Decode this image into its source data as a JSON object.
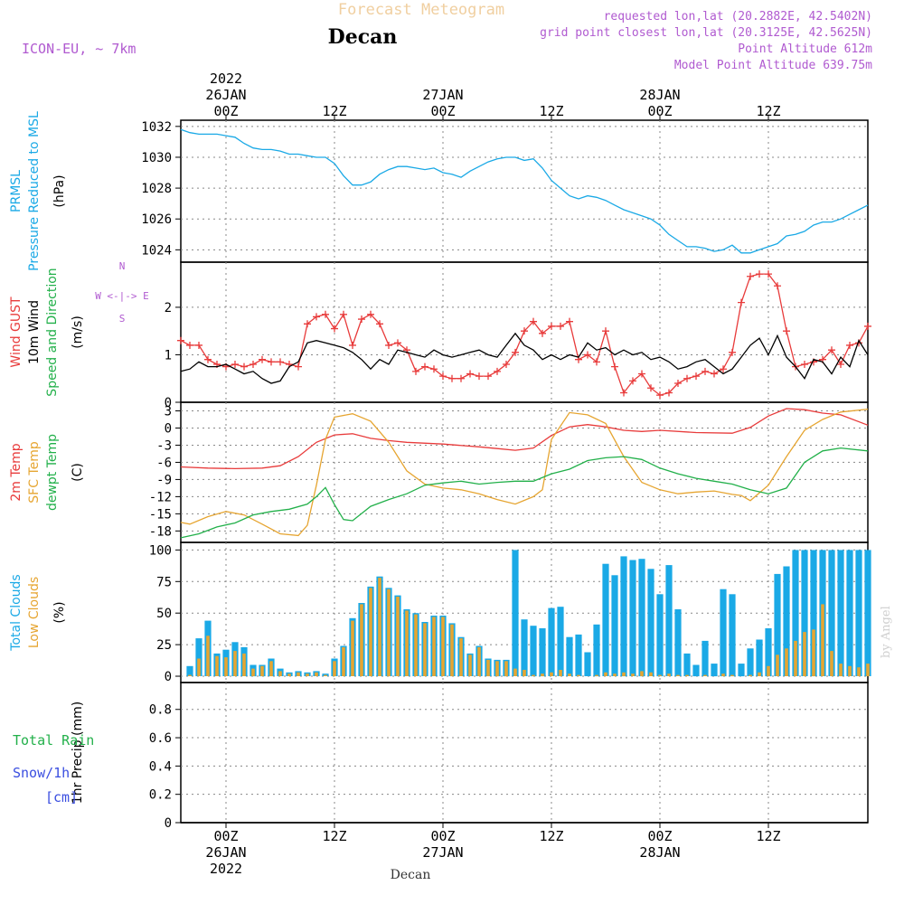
{
  "header": {
    "title": "Forecast Meteogram",
    "location": "Decan",
    "model": "ICON-EU, ~ 7km",
    "requested": "requested lon,lat (20.2882E, 42.5402N)",
    "gridpoint": "grid point closest lon,lat (20.3125E, 42.5625N)",
    "point_alt": "Point Altitude 612m",
    "model_alt": "Model Point Altitude 639.75m",
    "watermark": "by Angel",
    "footer_location": "Decan"
  },
  "time_axis": {
    "year": "2022",
    "ticks": [
      {
        "h": 0,
        "label": "00Z",
        "date": "26JAN",
        "year": "2022"
      },
      {
        "h": 12,
        "label": "12Z"
      },
      {
        "h": 24,
        "label": "00Z",
        "date": "27JAN"
      },
      {
        "h": 36,
        "label": "12Z"
      },
      {
        "h": 48,
        "label": "00Z",
        "date": "28JAN"
      },
      {
        "h": 60,
        "label": "12Z"
      }
    ],
    "range_hours": [
      -5,
      71
    ]
  },
  "chart_data": [
    {
      "type": "line",
      "panel": "pressure",
      "ylabel_lines": [
        {
          "text": "PRMSL",
          "color": "#1aa9e6"
        },
        {
          "text": "Pressure Reduced to MSL",
          "color": "#1aa9e6"
        }
      ],
      "unit": "(hPa)",
      "ylim": [
        1023.2,
        1032.4
      ],
      "yticks": [
        1024,
        1026,
        1028,
        1030,
        1032
      ],
      "grid": true,
      "series": [
        {
          "color": "#1aa9e6",
          "x": [
            -5,
            -4,
            -3,
            -2,
            -1,
            0,
            1,
            2,
            3,
            4,
            5,
            6,
            7,
            8,
            9,
            10,
            11,
            12,
            13,
            14,
            15,
            16,
            17,
            18,
            19,
            20,
            21,
            22,
            23,
            24,
            25,
            26,
            27,
            28,
            29,
            30,
            31,
            32,
            33,
            34,
            35,
            36,
            37,
            38,
            39,
            40,
            41,
            42,
            43,
            44,
            45,
            46,
            47,
            48,
            49,
            50,
            51,
            52,
            53,
            54,
            55,
            56,
            57,
            58,
            59,
            60,
            61,
            62,
            63,
            64,
            65,
            66,
            67,
            68,
            69,
            70,
            71
          ],
          "y": [
            1031.8,
            1031.6,
            1031.5,
            1031.5,
            1031.5,
            1031.4,
            1031.3,
            1030.9,
            1030.6,
            1030.5,
            1030.5,
            1030.4,
            1030.2,
            1030.2,
            1030.1,
            1030.0,
            1030.0,
            1029.6,
            1028.8,
            1028.2,
            1028.2,
            1028.4,
            1028.9,
            1029.2,
            1029.4,
            1029.4,
            1029.3,
            1029.2,
            1029.3,
            1029.0,
            1028.9,
            1028.7,
            1029.1,
            1029.4,
            1029.7,
            1029.9,
            1030.0,
            1030.0,
            1029.8,
            1029.9,
            1029.3,
            1028.5,
            1028.0,
            1027.5,
            1027.3,
            1027.5,
            1027.4,
            1027.2,
            1026.9,
            1026.6,
            1026.4,
            1026.2,
            1026.0,
            1025.6,
            1025.0,
            1024.6,
            1024.2,
            1024.2,
            1024.1,
            1023.9,
            1024.0,
            1024.3,
            1023.8,
            1023.8,
            1024.0,
            1024.2,
            1024.4,
            1024.9,
            1025.0,
            1025.2,
            1025.6,
            1025.8,
            1025.8,
            1026.0,
            1026.3,
            1026.6,
            1026.9
          ]
        }
      ]
    },
    {
      "type": "line",
      "panel": "wind",
      "ylabel_lines": [
        {
          "text": "Wind GUST",
          "color": "#e83b3b"
        },
        {
          "text": "10m Wind",
          "color": "#000000"
        },
        {
          "text": "Speed and Direction",
          "color": "#22b04a"
        }
      ],
      "unit": "(m/s)",
      "compass": "W <-|-> E",
      "compass_n": "N",
      "compass_s": "S",
      "ylim": [
        0,
        2.95
      ],
      "yticks": [
        0,
        1,
        2
      ],
      "grid": true,
      "series": [
        {
          "name": "Wind GUST",
          "color": "#e83b3b",
          "marker": "+",
          "x": [
            -5,
            -4,
            -3,
            -2,
            -1,
            0,
            1,
            2,
            3,
            4,
            5,
            6,
            7,
            8,
            9,
            10,
            11,
            12,
            13,
            14,
            15,
            16,
            17,
            18,
            19,
            20,
            21,
            22,
            23,
            24,
            25,
            26,
            27,
            28,
            29,
            30,
            31,
            32,
            33,
            34,
            35,
            36,
            37,
            38,
            39,
            40,
            41,
            42,
            43,
            44,
            45,
            46,
            47,
            48,
            49,
            50,
            51,
            52,
            53,
            54,
            55,
            56,
            57,
            58,
            59,
            60,
            61,
            62,
            63,
            64,
            65,
            66,
            67,
            68,
            69,
            70,
            71
          ],
          "y": [
            1.3,
            1.2,
            1.2,
            0.9,
            0.8,
            0.75,
            0.8,
            0.75,
            0.8,
            0.9,
            0.85,
            0.85,
            0.8,
            0.75,
            1.65,
            1.8,
            1.85,
            1.55,
            1.85,
            1.2,
            1.75,
            1.85,
            1.65,
            1.2,
            1.25,
            1.1,
            0.65,
            0.75,
            0.7,
            0.55,
            0.5,
            0.5,
            0.6,
            0.55,
            0.55,
            0.65,
            0.8,
            1.05,
            1.5,
            1.7,
            1.45,
            1.6,
            1.6,
            1.7,
            0.9,
            1.0,
            0.85,
            1.5,
            0.75,
            0.2,
            0.45,
            0.6,
            0.3,
            0.15,
            0.2,
            0.4,
            0.5,
            0.55,
            0.65,
            0.6,
            0.7,
            1.05,
            2.1,
            2.65,
            2.7,
            2.7,
            2.45,
            1.5,
            0.75,
            0.8,
            0.85,
            0.9,
            1.1,
            0.8,
            1.2,
            1.25,
            1.6
          ]
        },
        {
          "name": "10m Wind",
          "color": "#000000",
          "x": [
            -5,
            -4,
            -3,
            -2,
            -1,
            0,
            1,
            2,
            3,
            4,
            5,
            6,
            7,
            8,
            9,
            10,
            11,
            12,
            13,
            14,
            15,
            16,
            17,
            18,
            19,
            20,
            21,
            22,
            23,
            24,
            25,
            26,
            27,
            28,
            29,
            30,
            31,
            32,
            33,
            34,
            35,
            36,
            37,
            38,
            39,
            40,
            41,
            42,
            43,
            44,
            45,
            46,
            47,
            48,
            49,
            50,
            51,
            52,
            53,
            54,
            55,
            56,
            57,
            58,
            59,
            60,
            61,
            62,
            63,
            64,
            65,
            66,
            67,
            68,
            69,
            70,
            71
          ],
          "y": [
            0.65,
            0.7,
            0.85,
            0.75,
            0.75,
            0.8,
            0.7,
            0.6,
            0.65,
            0.5,
            0.4,
            0.45,
            0.75,
            0.85,
            1.25,
            1.3,
            1.25,
            1.2,
            1.15,
            1.05,
            0.9,
            0.7,
            0.9,
            0.8,
            1.1,
            1.05,
            1.0,
            0.95,
            1.1,
            1.0,
            0.95,
            1.0,
            1.05,
            1.1,
            1.0,
            0.95,
            1.2,
            1.45,
            1.2,
            1.1,
            0.9,
            1.0,
            0.9,
            1.0,
            0.95,
            1.25,
            1.1,
            1.15,
            1.0,
            1.1,
            1.0,
            1.05,
            0.9,
            0.95,
            0.85,
            0.7,
            0.75,
            0.85,
            0.9,
            0.75,
            0.6,
            0.7,
            0.95,
            1.2,
            1.35,
            1.0,
            1.4,
            0.95,
            0.75,
            0.5,
            0.9,
            0.85,
            0.6,
            0.95,
            0.75,
            1.3,
            1.0
          ]
        }
      ]
    },
    {
      "type": "line",
      "panel": "temperature",
      "ylabel_lines": [
        {
          "text": "2m Temp",
          "color": "#e83b3b"
        },
        {
          "text": "SFC Temp",
          "color": "#e6a531"
        },
        {
          "text": "dewpt Temp",
          "color": "#22b04a"
        }
      ],
      "unit": "(C)",
      "ylim": [
        -20,
        4.5
      ],
      "yticks": [
        3,
        0,
        -3,
        -6,
        -9,
        -12,
        -15,
        -18
      ],
      "grid": true,
      "series": [
        {
          "name": "2m Temp",
          "color": "#e83b3b",
          "x": [
            -5,
            -2,
            1,
            4,
            6,
            8,
            10,
            12,
            14,
            16,
            18,
            20,
            24,
            28,
            30,
            32,
            34,
            36,
            38,
            40,
            42,
            44,
            46,
            48,
            52,
            56,
            58,
            60,
            62,
            64,
            66,
            68,
            71
          ],
          "y": [
            -6.8,
            -7.0,
            -7.1,
            -7.0,
            -6.6,
            -5.0,
            -2.5,
            -1.2,
            -1.0,
            -1.8,
            -2.2,
            -2.5,
            -2.8,
            -3.3,
            -3.6,
            -3.9,
            -3.5,
            -1.3,
            0.2,
            0.6,
            0.2,
            -0.4,
            -0.6,
            -0.4,
            -0.8,
            -0.9,
            0.1,
            2.1,
            3.4,
            3.2,
            2.6,
            2.3,
            0.5
          ]
        },
        {
          "name": "SFC Temp",
          "color": "#e6a531",
          "x": [
            -5,
            -4,
            -2,
            0,
            2,
            4,
            6,
            8,
            9,
            10,
            11,
            12,
            14,
            16,
            18,
            20,
            22,
            24,
            26,
            28,
            30,
            32,
            34,
            35,
            36,
            38,
            40,
            42,
            44,
            46,
            48,
            50,
            52,
            54,
            56,
            57,
            58,
            60,
            62,
            64,
            66,
            68,
            71
          ],
          "y": [
            -16.5,
            -16.8,
            -15.5,
            -14.6,
            -15.2,
            -16.8,
            -18.5,
            -18.8,
            -17.0,
            -10.0,
            -2.0,
            1.9,
            2.5,
            1.2,
            -2.5,
            -7.5,
            -9.8,
            -10.5,
            -10.8,
            -11.5,
            -12.5,
            -13.3,
            -12.0,
            -10.8,
            -2.0,
            2.7,
            2.3,
            0.8,
            -5.0,
            -9.5,
            -10.8,
            -11.5,
            -11.2,
            -11.0,
            -11.6,
            -11.8,
            -12.7,
            -10.0,
            -5.0,
            -0.4,
            1.5,
            2.8,
            3.3
          ]
        },
        {
          "name": "dewpt Temp",
          "color": "#22b04a",
          "x": [
            -5,
            -3,
            -1,
            1,
            3,
            5,
            7,
            9,
            10,
            11,
            12,
            13,
            14,
            16,
            18,
            20,
            22,
            24,
            26,
            28,
            30,
            32,
            34,
            36,
            38,
            40,
            42,
            44,
            46,
            48,
            50,
            52,
            54,
            56,
            58,
            60,
            62,
            64,
            66,
            68,
            71
          ],
          "y": [
            -19.2,
            -18.5,
            -17.3,
            -16.6,
            -15.2,
            -14.6,
            -14.2,
            -13.3,
            -12.0,
            -10.4,
            -13.4,
            -16.0,
            -16.2,
            -13.7,
            -12.5,
            -11.5,
            -10.0,
            -9.6,
            -9.3,
            -9.8,
            -9.5,
            -9.3,
            -9.3,
            -8.0,
            -7.2,
            -5.7,
            -5.2,
            -5.0,
            -5.5,
            -7.0,
            -8.0,
            -8.8,
            -9.3,
            -9.8,
            -10.8,
            -11.5,
            -10.5,
            -6.0,
            -4.0,
            -3.5,
            -4.0
          ]
        }
      ]
    },
    {
      "type": "bar",
      "panel": "clouds",
      "ylabel_lines": [
        {
          "text": "Total Clouds",
          "color": "#1aa9e6"
        },
        {
          "text": "Low Clouds",
          "color": "#e6a531"
        }
      ],
      "unit": "(%)",
      "ylim": [
        -5,
        106
      ],
      "yticks": [
        0,
        25,
        50,
        75,
        100
      ],
      "grid": true,
      "x": [
        -4,
        -3,
        -2,
        -1,
        0,
        1,
        2,
        3,
        4,
        5,
        6,
        7,
        8,
        9,
        10,
        11,
        12,
        13,
        14,
        15,
        16,
        17,
        18,
        19,
        20,
        21,
        22,
        23,
        24,
        25,
        26,
        27,
        28,
        29,
        30,
        31,
        32,
        33,
        34,
        35,
        36,
        37,
        38,
        39,
        40,
        41,
        42,
        43,
        44,
        45,
        46,
        47,
        48,
        49,
        50,
        51,
        52,
        53,
        54,
        55,
        56,
        57,
        58,
        59,
        60,
        61,
        62,
        63,
        64,
        65,
        66,
        67,
        68,
        69,
        70,
        71
      ],
      "series": [
        {
          "name": "Total Clouds",
          "color": "#1aa9e6",
          "values": [
            8,
            30,
            44,
            18,
            21,
            27,
            23,
            9,
            9,
            14,
            6,
            3,
            4,
            3,
            4,
            2,
            14,
            24,
            46,
            58,
            71,
            79,
            70,
            64,
            53,
            50,
            43,
            48,
            48,
            42,
            31,
            18,
            24,
            14,
            13,
            13,
            100,
            45,
            40,
            38,
            54,
            55,
            31,
            33,
            19,
            41,
            89,
            80,
            95,
            92,
            93,
            85,
            65,
            88,
            53,
            18,
            9,
            28,
            10,
            69,
            65,
            10,
            22,
            29,
            38,
            81,
            87,
            100,
            100,
            100,
            100,
            100,
            100,
            100,
            100,
            100
          ]
        },
        {
          "name": "Low Clouds",
          "color": "#e6a531",
          "values": [
            1,
            14,
            32,
            16,
            15,
            20,
            18,
            6,
            8,
            12,
            4,
            2,
            3,
            2,
            3,
            1,
            12,
            23,
            44,
            57,
            70,
            78,
            69,
            63,
            52,
            49,
            42,
            47,
            47,
            41,
            30,
            17,
            23,
            13,
            12,
            12,
            6,
            5,
            1,
            2,
            3,
            5,
            2,
            1,
            0,
            1,
            3,
            2,
            3,
            2,
            4,
            3,
            1,
            2,
            1,
            1,
            0,
            1,
            0,
            2,
            1,
            0,
            1,
            3,
            8,
            17,
            22,
            28,
            35,
            37,
            57,
            20,
            10,
            8,
            7,
            10
          ]
        }
      ]
    },
    {
      "type": "bar",
      "panel": "precip",
      "ylabel_lines": [
        {
          "text": "Total  Rain",
          "color": "#22b04a"
        },
        {
          "text": "Snow/1h",
          "color": "#3a4ee0"
        },
        {
          "text": "[cm]",
          "color": "#3a4ee0"
        }
      ],
      "unit": "1hr Precip (mm)",
      "ylim": [
        0,
        0.99
      ],
      "yticks": [
        0,
        0.2,
        0.4,
        0.6,
        0.8
      ],
      "ytick_labels": [
        "0",
        "0.2",
        "0.4",
        "0.6",
        "0.8"
      ],
      "grid": true,
      "series": []
    }
  ]
}
